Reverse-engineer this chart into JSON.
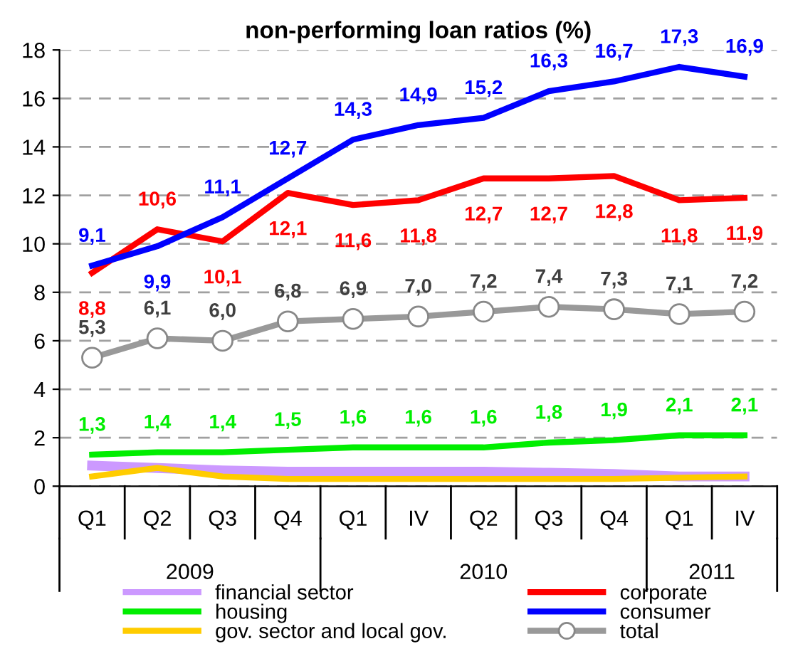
{
  "chart_data": {
    "type": "line",
    "title": "non-performing loan ratios (%)",
    "categories": [
      "Q1",
      "Q2",
      "Q3",
      "Q4",
      "Q1",
      "IV",
      "Q2",
      "Q3",
      "Q4",
      "Q1",
      "IV"
    ],
    "annotations": [
      "2009",
      "2010",
      "2011"
    ],
    "ylim": [
      0,
      18
    ],
    "yticks": [
      0,
      2,
      4,
      6,
      8,
      10,
      12,
      14,
      16,
      18
    ],
    "grid": "y",
    "legend": "bottom",
    "line_style": "solid",
    "series": [
      {
        "name": "financial sector",
        "color": "#cc99ff",
        "marker": "none",
        "values": [
          0.85,
          0.75,
          0.65,
          0.6,
          0.6,
          0.6,
          0.6,
          0.55,
          0.5,
          0.4,
          0.4
        ]
      },
      {
        "name": "housing",
        "color": "#00ee00",
        "marker": "none",
        "values": [
          1.3,
          1.4,
          1.4,
          1.5,
          1.6,
          1.6,
          1.6,
          1.8,
          1.9,
          2.1,
          2.1
        ],
        "value_labels": [
          "1,3",
          "1,4",
          "1,4",
          "1,5",
          "1,6",
          "1,6",
          "1,6",
          "1,8",
          "1,9",
          "2,1",
          "2,1"
        ]
      },
      {
        "name": "gov. sector and local gov.",
        "color": "#ffcc00",
        "marker": "none",
        "values": [
          0.4,
          0.75,
          0.4,
          0.3,
          0.3,
          0.3,
          0.3,
          0.3,
          0.3,
          0.35,
          0.4
        ]
      },
      {
        "name": "corporate",
        "color": "#ff0000",
        "marker": "none",
        "values": [
          8.8,
          10.6,
          10.1,
          12.1,
          11.6,
          11.8,
          12.7,
          12.7,
          12.8,
          11.8,
          11.9
        ],
        "value_labels": [
          "8,8",
          "10,6",
          "10,1",
          "12,1",
          "11,6",
          "11,8",
          "12,7",
          "12,7",
          "12,8",
          "11,8",
          "11,9"
        ]
      },
      {
        "name": "consumer",
        "color": "#0000ff",
        "marker": "none",
        "values": [
          9.1,
          9.9,
          11.1,
          12.7,
          14.3,
          14.9,
          15.2,
          16.3,
          16.7,
          17.3,
          16.9
        ],
        "value_labels": [
          "9,1",
          "9,9",
          "11,1",
          "12,7",
          "14,3",
          "14,9",
          "15,2",
          "16,3",
          "16,7",
          "17,3",
          "16,9"
        ]
      },
      {
        "name": "total",
        "color": "#999999",
        "marker": "circle",
        "values": [
          5.3,
          6.1,
          6.0,
          6.8,
          6.9,
          7.0,
          7.2,
          7.4,
          7.3,
          7.1,
          7.2
        ],
        "value_labels": [
          "5,3",
          "6,1",
          "6,0",
          "6,8",
          "6,9",
          "7,0",
          "7,2",
          "7,4",
          "7,3",
          "7,1",
          "7,2"
        ]
      }
    ]
  }
}
